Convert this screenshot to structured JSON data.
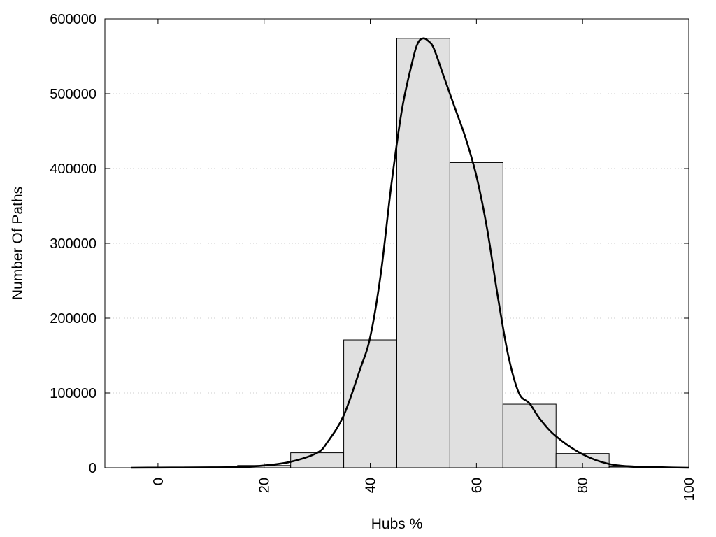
{
  "chart_data": {
    "type": "bar",
    "title": "",
    "xlabel": "Hubs %",
    "ylabel": "Number Of Paths",
    "xlim": [
      -10,
      100
    ],
    "ylim": [
      0,
      600000
    ],
    "x_ticks": [
      "0",
      "20",
      "40",
      "60",
      "80",
      "100"
    ],
    "y_ticks": [
      "0",
      "100000",
      "200000",
      "300000",
      "400000",
      "500000",
      "600000"
    ],
    "grid": "horizontal-dotted",
    "legend": "none",
    "bar_width": 10,
    "bars": {
      "x": [
        0,
        10,
        20,
        30,
        40,
        50,
        60,
        70,
        80,
        90
      ],
      "values": [
        500,
        1000,
        3000,
        20000,
        171000,
        574000,
        408000,
        85000,
        19000,
        1500
      ]
    },
    "density_curve": {
      "x": [
        -5,
        0,
        5,
        10,
        15,
        20,
        25,
        30,
        32,
        35,
        38,
        40,
        42,
        44,
        46,
        48,
        49,
        50,
        51,
        52,
        54,
        56,
        58,
        60,
        62,
        64,
        66,
        68,
        70,
        72,
        75,
        80,
        85,
        90,
        95,
        100
      ],
      "values": [
        0,
        200,
        300,
        500,
        1000,
        3000,
        8000,
        20000,
        35000,
        70000,
        130000,
        175000,
        260000,
        380000,
        480000,
        545000,
        568000,
        574000,
        570000,
        560000,
        520000,
        480000,
        440000,
        390000,
        320000,
        230000,
        150000,
        100000,
        86000,
        65000,
        42000,
        18000,
        5000,
        1500,
        600,
        0
      ]
    },
    "colors": {
      "bar_fill": "#e0e0e0",
      "bar_stroke": "#000000",
      "curve": "#000000",
      "grid": "#cccccc"
    }
  }
}
